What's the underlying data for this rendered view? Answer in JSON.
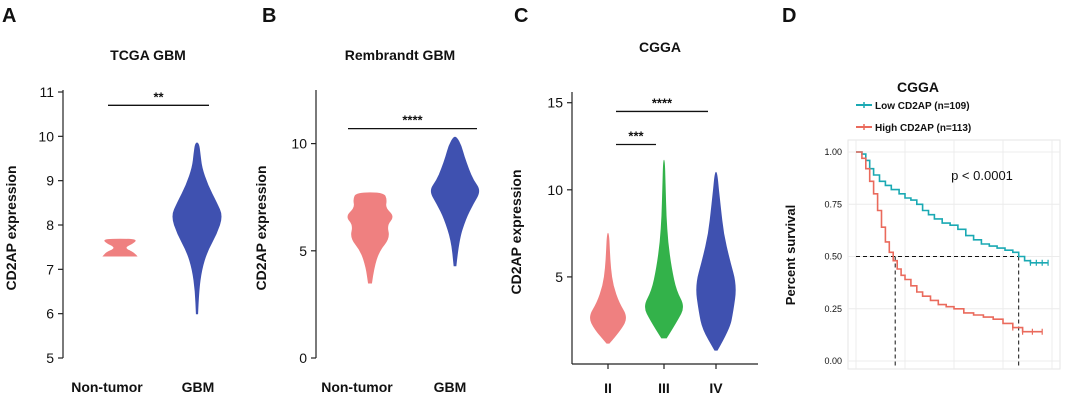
{
  "panels": {
    "A": {
      "letter": "A",
      "chart_data": {
        "type": "violin",
        "title": "TCGA GBM",
        "ylabel": "CD2AP expression",
        "ylim": [
          5,
          11
        ],
        "yticks": [
          "5",
          "6",
          "7",
          "8",
          "9",
          "10",
          "11"
        ],
        "categories": [
          "Non-tumor",
          "GBM"
        ],
        "colors": [
          "#ef8080",
          "#3f51b0"
        ],
        "violins": [
          {
            "category": "Non-tumor",
            "profile": [
              [
                7.3,
                0.55
              ],
              [
                7.38,
                0.45
              ],
              [
                7.45,
                0.2
              ],
              [
                7.52,
                0.2
              ],
              [
                7.6,
                0.45
              ],
              [
                7.68,
                0.55
              ]
            ]
          },
          {
            "category": "GBM",
            "profile": [
              [
                6.0,
                0.02
              ],
              [
                6.5,
                0.05
              ],
              [
                7.0,
                0.15
              ],
              [
                7.4,
                0.33
              ],
              [
                7.8,
                0.65
              ],
              [
                8.2,
                0.85
              ],
              [
                8.5,
                0.65
              ],
              [
                8.9,
                0.35
              ],
              [
                9.3,
                0.15
              ],
              [
                9.6,
                0.1
              ],
              [
                9.85,
                0.05
              ]
            ]
          }
        ],
        "significance": [
          {
            "from": "Non-tumor",
            "to": "GBM",
            "label": "**",
            "y": 10.7
          }
        ]
      }
    },
    "B": {
      "letter": "B",
      "chart_data": {
        "type": "violin",
        "title": "Rembrandt GBM",
        "ylabel": "CD2AP expression",
        "ylim": [
          0,
          12.5
        ],
        "yticks": [
          "0",
          "5",
          "10"
        ],
        "categories": [
          "Non-tumor",
          "GBM"
        ],
        "colors": [
          "#ef8080",
          "#3f51b0"
        ],
        "violins": [
          {
            "category": "Non-tumor",
            "profile": [
              [
                3.5,
                0.05
              ],
              [
                4.2,
                0.12
              ],
              [
                5.0,
                0.3
              ],
              [
                5.6,
                0.65
              ],
              [
                6.2,
                0.55
              ],
              [
                6.6,
                0.8
              ],
              [
                7.0,
                0.5
              ],
              [
                7.4,
                0.55
              ],
              [
                7.7,
                0.45
              ]
            ]
          },
          {
            "category": "GBM",
            "profile": [
              [
                4.3,
                0.03
              ],
              [
                5.5,
                0.12
              ],
              [
                6.5,
                0.35
              ],
              [
                7.2,
                0.6
              ],
              [
                7.8,
                0.85
              ],
              [
                8.3,
                0.6
              ],
              [
                8.8,
                0.45
              ],
              [
                9.4,
                0.3
              ],
              [
                9.9,
                0.2
              ],
              [
                10.3,
                0.05
              ]
            ]
          }
        ],
        "significance": [
          {
            "from": "Non-tumor",
            "to": "GBM",
            "label": "****",
            "y": 10.7
          }
        ]
      }
    },
    "C": {
      "letter": "C",
      "chart_data": {
        "type": "violin",
        "title": "CGGA",
        "ylabel": "CD2AP expression",
        "ylim": [
          0,
          15.5
        ],
        "yticks": [
          "5",
          "10",
          "15"
        ],
        "ytick_values": [
          5,
          10,
          15
        ],
        "categories": [
          "II",
          "III",
          "IV"
        ],
        "colors": [
          "#ef8080",
          "#33b24a",
          "#3f51b0"
        ],
        "violins": [
          {
            "category": "II",
            "profile": [
              [
                1.2,
                0.05
              ],
              [
                2.0,
                0.55
              ],
              [
                2.7,
                0.8
              ],
              [
                3.5,
                0.45
              ],
              [
                4.5,
                0.2
              ],
              [
                5.5,
                0.1
              ],
              [
                6.5,
                0.06
              ],
              [
                7.5,
                0.02
              ]
            ]
          },
          {
            "category": "III",
            "profile": [
              [
                1.5,
                0.1
              ],
              [
                2.5,
                0.55
              ],
              [
                3.3,
                0.85
              ],
              [
                4.2,
                0.5
              ],
              [
                5.5,
                0.3
              ],
              [
                7.0,
                0.15
              ],
              [
                8.5,
                0.08
              ],
              [
                10.0,
                0.05
              ],
              [
                11.7,
                0.02
              ]
            ]
          },
          {
            "category": "IV",
            "profile": [
              [
                0.8,
                0.05
              ],
              [
                2.0,
                0.55
              ],
              [
                3.0,
                0.7
              ],
              [
                4.5,
                0.85
              ],
              [
                6.0,
                0.55
              ],
              [
                7.5,
                0.3
              ],
              [
                9.0,
                0.18
              ],
              [
                10.0,
                0.1
              ],
              [
                11.0,
                0.03
              ]
            ]
          }
        ],
        "significance": [
          {
            "from": "II",
            "to": "III",
            "label": "***",
            "y": 12.6
          },
          {
            "from": "II",
            "to": "IV",
            "label": "****",
            "y": 14.5
          }
        ]
      }
    },
    "D": {
      "letter": "D",
      "chart_data": {
        "type": "line",
        "title": "CGGA",
        "ylabel": "Percent survival",
        "ylim": [
          0,
          1
        ],
        "yticks": [
          "0.00",
          "0.25",
          "0.50",
          "0.75",
          "1.00"
        ],
        "ytick_values": [
          0,
          0.25,
          0.5,
          0.75,
          1
        ],
        "xlim": [
          0,
          100
        ],
        "grid": true,
        "annotation": "p < 0.0001",
        "series": [
          {
            "name": "Low CD2AP (n=109)",
            "color": "#1aa9b3",
            "x": [
              0,
              3,
              5,
              7,
              9,
              12,
              15,
              18,
              22,
              25,
              28,
              31,
              34,
              37,
              40,
              44,
              48,
              52,
              56,
              60,
              64,
              68,
              72,
              76,
              80,
              83,
              86,
              89,
              92,
              95,
              98
            ],
            "y": [
              1.0,
              0.99,
              0.96,
              0.92,
              0.89,
              0.86,
              0.84,
              0.82,
              0.8,
              0.78,
              0.77,
              0.75,
              0.72,
              0.7,
              0.68,
              0.66,
              0.65,
              0.63,
              0.6,
              0.58,
              0.56,
              0.55,
              0.54,
              0.53,
              0.52,
              0.5,
              0.48,
              0.47,
              0.47,
              0.47,
              0.47
            ]
          },
          {
            "name": "High CD2AP (n=113)",
            "color": "#ea6a5c",
            "x": [
              0,
              3,
              5,
              7,
              9,
              11,
              13,
              15,
              17,
              19,
              21,
              23,
              25,
              28,
              31,
              34,
              38,
              42,
              46,
              50,
              55,
              60,
              65,
              70,
              75,
              80,
              85,
              90,
              95
            ],
            "y": [
              1.0,
              0.97,
              0.92,
              0.86,
              0.8,
              0.72,
              0.64,
              0.57,
              0.52,
              0.48,
              0.44,
              0.41,
              0.39,
              0.36,
              0.33,
              0.31,
              0.29,
              0.27,
              0.26,
              0.25,
              0.23,
              0.22,
              0.21,
              0.2,
              0.18,
              0.16,
              0.14,
              0.14,
              0.14
            ]
          }
        ],
        "median_markers": [
          {
            "x": 20,
            "y": 0.5
          },
          {
            "x": 83,
            "y": 0.5
          }
        ]
      }
    }
  }
}
